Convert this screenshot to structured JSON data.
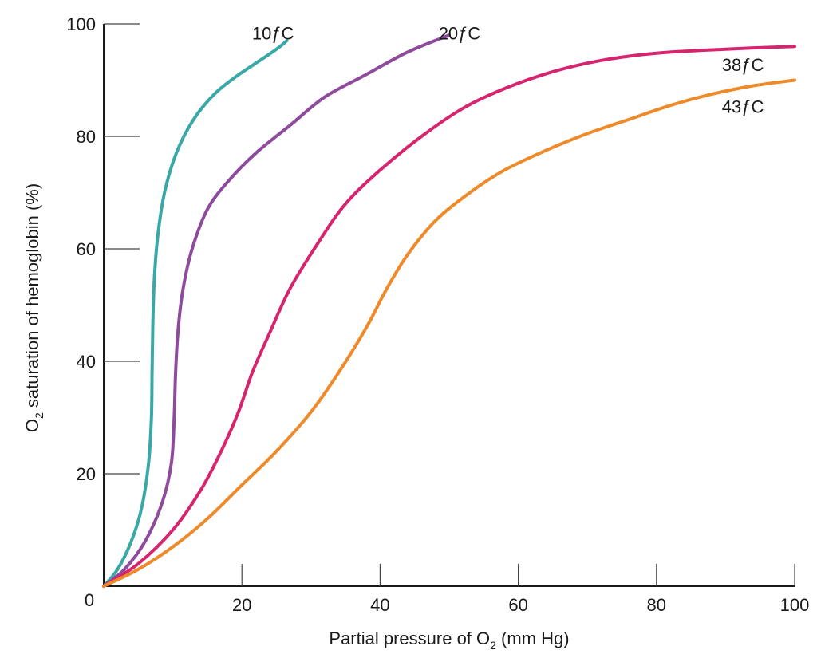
{
  "chart_data": {
    "type": "line",
    "xlabel": {
      "before": "Partial pressure of O",
      "sub": "2",
      "after": " (mm Hg)"
    },
    "ylabel": {
      "before": "O",
      "sub": "2",
      "after": " saturation of hemoglobin (%)"
    },
    "xlim": [
      0,
      100
    ],
    "ylim": [
      0,
      100
    ],
    "origin_label": "0",
    "x_ticks": [
      20,
      40,
      60,
      80,
      100
    ],
    "x_tick_labels": [
      "20",
      "40",
      "60",
      "80",
      "100"
    ],
    "y_ticks": [
      20,
      40,
      60,
      80,
      100
    ],
    "y_tick_labels": [
      "20",
      "40",
      "60",
      "80",
      "100"
    ],
    "grid": false,
    "series": [
      {
        "name": "10ƒC",
        "color": "#3aa8a6",
        "points": [
          [
            0,
            0
          ],
          [
            2,
            3
          ],
          [
            4,
            8
          ],
          [
            5.5,
            14
          ],
          [
            6.5,
            22
          ],
          [
            6.9,
            30
          ],
          [
            7,
            38
          ],
          [
            7.1,
            46
          ],
          [
            7.3,
            54
          ],
          [
            7.8,
            62
          ],
          [
            8.8,
            70
          ],
          [
            10.5,
            77
          ],
          [
            13,
            83
          ],
          [
            16,
            87.5
          ],
          [
            19,
            90.5
          ],
          [
            22,
            93
          ],
          [
            25,
            95.5
          ],
          [
            26.5,
            97
          ]
        ]
      },
      {
        "name": "20ƒC",
        "color": "#8e4a9c",
        "points": [
          [
            0,
            0
          ],
          [
            3,
            3
          ],
          [
            6,
            8
          ],
          [
            8.5,
            15
          ],
          [
            9.8,
            22
          ],
          [
            10.2,
            30
          ],
          [
            10.4,
            38
          ],
          [
            10.8,
            46
          ],
          [
            11.5,
            53
          ],
          [
            12.8,
            60
          ],
          [
            15,
            67
          ],
          [
            18,
            72
          ],
          [
            22,
            77
          ],
          [
            27,
            82
          ],
          [
            32,
            87
          ],
          [
            38,
            91
          ],
          [
            44,
            95
          ],
          [
            50,
            98
          ]
        ]
      },
      {
        "name": "38ƒC",
        "color": "#d6246e",
        "points": [
          [
            0,
            0
          ],
          [
            5,
            4
          ],
          [
            10,
            10
          ],
          [
            14,
            17
          ],
          [
            17,
            24
          ],
          [
            19.5,
            31
          ],
          [
            21.5,
            38
          ],
          [
            24,
            45
          ],
          [
            27,
            53
          ],
          [
            31,
            61
          ],
          [
            35,
            68
          ],
          [
            40,
            74
          ],
          [
            46,
            80
          ],
          [
            52,
            85
          ],
          [
            58,
            88.5
          ],
          [
            65,
            91.5
          ],
          [
            72,
            93.5
          ],
          [
            80,
            94.8
          ],
          [
            90,
            95.5
          ],
          [
            100,
            96
          ]
        ]
      },
      {
        "name": "43ƒC",
        "color": "#ee8a2a",
        "points": [
          [
            0,
            0
          ],
          [
            5,
            3
          ],
          [
            10,
            7
          ],
          [
            15,
            12
          ],
          [
            20,
            18
          ],
          [
            25,
            24
          ],
          [
            30,
            31
          ],
          [
            34,
            38
          ],
          [
            38,
            46
          ],
          [
            41,
            53
          ],
          [
            44,
            59
          ],
          [
            48,
            65
          ],
          [
            53,
            70
          ],
          [
            58,
            74
          ],
          [
            64,
            77.5
          ],
          [
            70,
            80.5
          ],
          [
            76,
            83
          ],
          [
            82,
            85.5
          ],
          [
            88,
            87.5
          ],
          [
            94,
            89
          ],
          [
            100,
            90
          ]
        ]
      }
    ],
    "label_anchors": [
      {
        "series": 0,
        "x": 24.5,
        "y": 97.2
      },
      {
        "series": 1,
        "x": 51.5,
        "y": 97.2
      },
      {
        "series": 2,
        "x": 92.5,
        "y": 91.6
      },
      {
        "series": 3,
        "x": 92.5,
        "y": 84.2
      }
    ]
  }
}
